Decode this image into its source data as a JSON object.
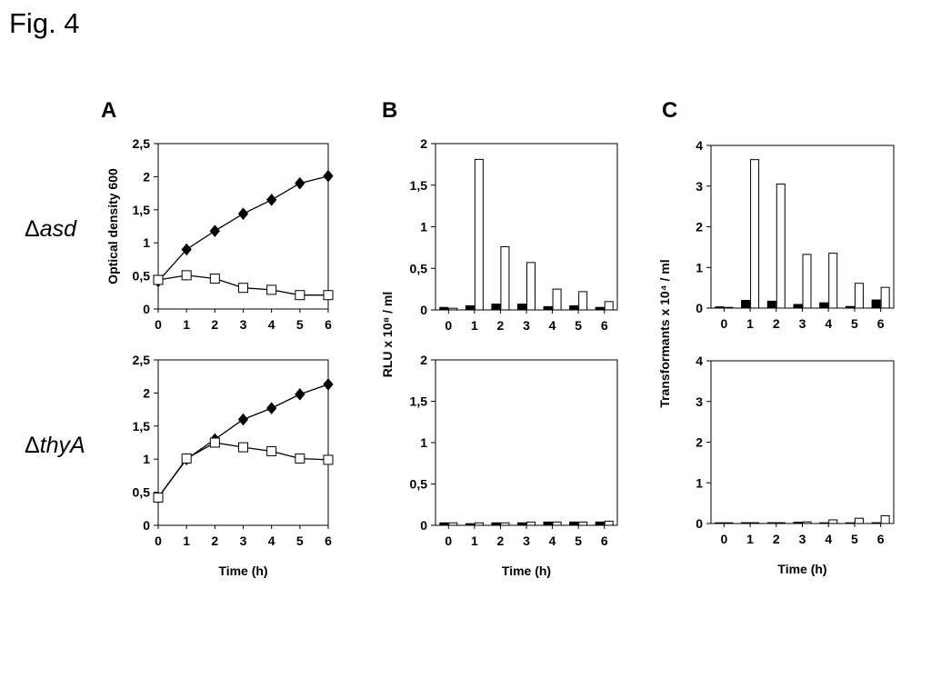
{
  "figure": {
    "title": "Fig. 4",
    "panels": [
      "A",
      "B",
      "C"
    ],
    "rows": [
      {
        "delta": "Δ",
        "label": "asd"
      },
      {
        "delta": "Δ",
        "label": "thyA"
      }
    ]
  },
  "chart_data": [
    {
      "id": "A-asd",
      "type": "line",
      "x": [
        0,
        1,
        2,
        3,
        4,
        5,
        6
      ],
      "xtick_labels": [
        "0",
        "1",
        "2",
        "3",
        "4",
        "5",
        "6"
      ],
      "ylim": [
        0,
        2.5
      ],
      "yticks": [
        0,
        0.5,
        1,
        1.5,
        2,
        2.5
      ],
      "ytick_labels": [
        "0",
        "0,5",
        "1",
        "1,5",
        "2",
        "2,5"
      ],
      "ylabel": "Optical density 600",
      "xlabel": "",
      "series": [
        {
          "marker": "diamond",
          "fill": "#000000",
          "values": [
            0.42,
            0.9,
            1.18,
            1.44,
            1.65,
            1.9,
            2.01
          ]
        },
        {
          "marker": "square",
          "fill": "#ffffff",
          "values": [
            0.44,
            0.51,
            0.46,
            0.32,
            0.29,
            0.21,
            0.21
          ]
        }
      ]
    },
    {
      "id": "A-thyA",
      "type": "line",
      "x": [
        0,
        1,
        2,
        3,
        4,
        5,
        6
      ],
      "xtick_labels": [
        "0",
        "1",
        "2",
        "3",
        "4",
        "5",
        "6"
      ],
      "ylim": [
        0,
        2.5
      ],
      "yticks": [
        0,
        0.5,
        1,
        1.5,
        2,
        2.5
      ],
      "ytick_labels": [
        "0",
        "0,5",
        "1",
        "1,5",
        "2",
        "2,5"
      ],
      "ylabel": "",
      "xlabel": "Time (h)",
      "series": [
        {
          "marker": "diamond",
          "fill": "#000000",
          "values": [
            0.42,
            1.0,
            1.3,
            1.6,
            1.77,
            1.98,
            2.13
          ]
        },
        {
          "marker": "square",
          "fill": "#ffffff",
          "values": [
            0.42,
            1.01,
            1.25,
            1.18,
            1.12,
            1.01,
            0.99
          ]
        }
      ]
    },
    {
      "id": "B-asd",
      "type": "bar",
      "categories": [
        "0",
        "1",
        "2",
        "3",
        "4",
        "5",
        "6"
      ],
      "ylim": [
        0,
        2
      ],
      "yticks": [
        0,
        0.5,
        1,
        1.5,
        2
      ],
      "ytick_labels": [
        "0",
        "0,5",
        "1",
        "1,5",
        "2"
      ],
      "ylabel": "",
      "xlabel": "",
      "series": [
        {
          "fill": "#000000",
          "values": [
            0.03,
            0.05,
            0.07,
            0.07,
            0.04,
            0.05,
            0.03
          ]
        },
        {
          "fill": "#ffffff",
          "values": [
            0.02,
            1.81,
            0.76,
            0.57,
            0.25,
            0.22,
            0.1
          ]
        }
      ]
    },
    {
      "id": "B-thyA",
      "type": "bar",
      "categories": [
        "0",
        "1",
        "2",
        "3",
        "4",
        "5",
        "6"
      ],
      "ylim": [
        0,
        2
      ],
      "yticks": [
        0,
        0.5,
        1,
        1.5,
        2
      ],
      "ytick_labels": [
        "0",
        "0,5",
        "1",
        "1,5",
        "2"
      ],
      "ylabel": "RLU x 10⁸ / ml",
      "xlabel": "Time (h)",
      "series": [
        {
          "fill": "#000000",
          "values": [
            0.03,
            0.02,
            0.03,
            0.03,
            0.04,
            0.04,
            0.04
          ]
        },
        {
          "fill": "#ffffff",
          "values": [
            0.03,
            0.03,
            0.03,
            0.04,
            0.04,
            0.04,
            0.05
          ]
        }
      ]
    },
    {
      "id": "C-asd",
      "type": "bar",
      "categories": [
        "0",
        "1",
        "2",
        "3",
        "4",
        "5",
        "6"
      ],
      "ylim": [
        0,
        4
      ],
      "yticks": [
        0,
        1,
        2,
        3,
        4
      ],
      "ytick_labels": [
        "0",
        "1",
        "2",
        "3",
        "4"
      ],
      "ylabel": "",
      "xlabel": "",
      "series": [
        {
          "fill": "#000000",
          "values": [
            0.03,
            0.19,
            0.17,
            0.09,
            0.13,
            0.04,
            0.2
          ]
        },
        {
          "fill": "#ffffff",
          "values": [
            0.0,
            3.65,
            3.05,
            1.32,
            1.35,
            0.61,
            0.51
          ]
        }
      ]
    },
    {
      "id": "C-thyA",
      "type": "bar",
      "categories": [
        "0",
        "1",
        "2",
        "3",
        "4",
        "5",
        "6"
      ],
      "ylim": [
        0,
        4
      ],
      "yticks": [
        0,
        1,
        2,
        3,
        4
      ],
      "ytick_labels": [
        "0",
        "1",
        "2",
        "3",
        "4"
      ],
      "ylabel": "Transformants x 10⁴ / ml",
      "xlabel": "Time (h)",
      "series": [
        {
          "fill": "#000000",
          "values": [
            0.0,
            0.02,
            0.02,
            0.03,
            0.01,
            0.01,
            0.02
          ]
        },
        {
          "fill": "#ffffff",
          "values": [
            0.0,
            0.02,
            0.02,
            0.04,
            0.09,
            0.13,
            0.19
          ]
        }
      ]
    }
  ]
}
